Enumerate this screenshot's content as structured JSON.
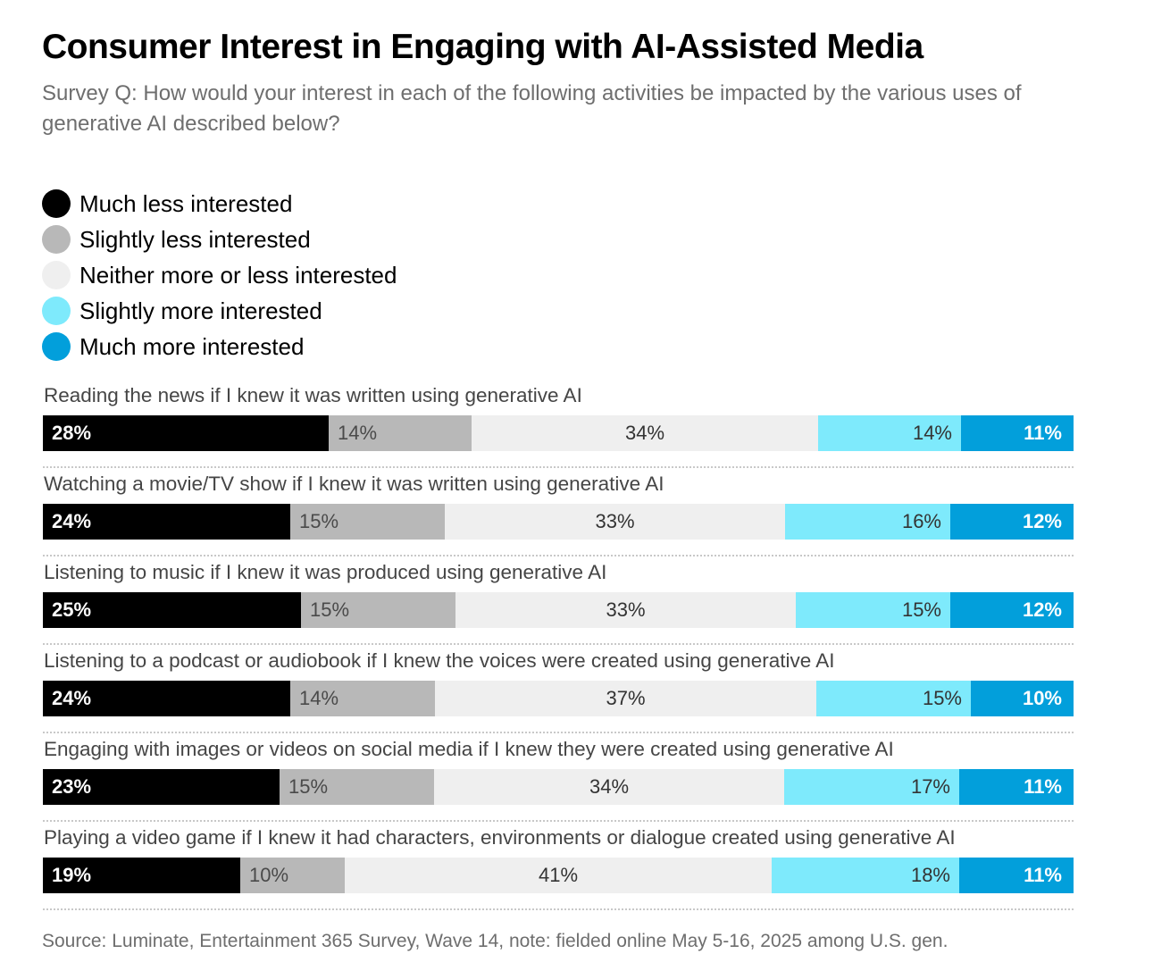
{
  "colors": {
    "much_less": "#000000",
    "slightly_less": "#b8b8b8",
    "neither": "#efefef",
    "slightly_more": "#7eeafc",
    "much_more": "#029fdb"
  },
  "chart_data": {
    "type": "bar",
    "orientation": "horizontal",
    "stacked": true,
    "stack_mode": "100%",
    "title": "Consumer Interest in Engaging with AI-Assisted Media",
    "subtitle": "Survey Q: How would your interest in each of the following activities be impacted by the various uses of generative AI described below?",
    "legend_position": "top-left",
    "categories": [
      "Reading the news if I knew it was written using generative AI",
      "Watching a movie/TV show if I knew it was written using generative AI",
      "Listening to music if I knew it was produced using generative AI",
      "Listening to a podcast or audiobook if I knew the voices were created using generative AI",
      "Engaging with images or videos on social media if I knew they were created using generative AI",
      "Playing a video game if I knew it had characters, environments or dialogue created using generative AI"
    ],
    "series": [
      {
        "name": "Much less interested",
        "color": "#000000",
        "values": [
          28,
          24,
          25,
          24,
          23,
          19
        ]
      },
      {
        "name": "Slightly less interested",
        "color": "#b8b8b8",
        "values": [
          14,
          15,
          15,
          14,
          15,
          10
        ]
      },
      {
        "name": "Neither more or less interested",
        "color": "#efefef",
        "values": [
          34,
          33,
          33,
          37,
          34,
          41
        ]
      },
      {
        "name": "Slightly more interested",
        "color": "#7eeafc",
        "values": [
          14,
          16,
          15,
          15,
          17,
          18
        ]
      },
      {
        "name": "Much more interested",
        "color": "#029fdb",
        "values": [
          11,
          12,
          12,
          10,
          11,
          11
        ]
      }
    ],
    "value_suffix": "%",
    "source": "Source: Luminate, Entertainment 365 Survey, Wave 14, note: fielded online May 5-16, 2025 among U.S. gen."
  }
}
